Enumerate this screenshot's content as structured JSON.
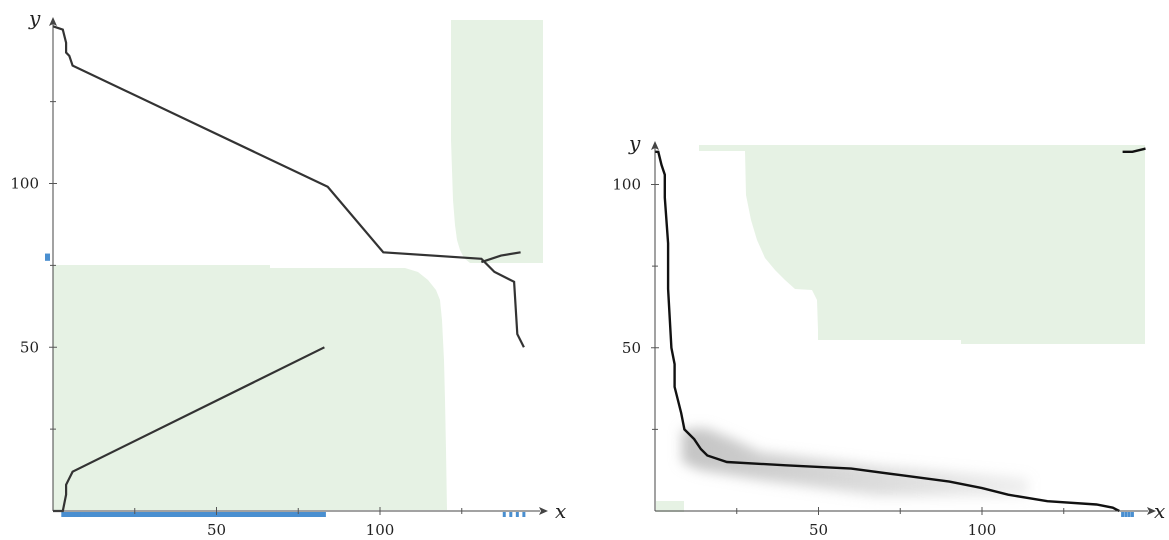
{
  "colors": {
    "region": "#e6f2e4",
    "curve": "#333333",
    "marker": "#4a8fd0",
    "shadow": "#9a9a9a"
  },
  "chart_data": [
    {
      "type": "line",
      "title": "",
      "xlabel": "x",
      "ylabel": "y",
      "xlim": [
        0,
        150
      ],
      "ylim": [
        0,
        148
      ],
      "x_tick_labels": [
        "50",
        "100"
      ],
      "y_tick_labels": [
        "50",
        "100"
      ],
      "x_ticks": [
        50,
        100
      ],
      "y_ticks": [
        50,
        100
      ],
      "x_minor_ticks": [
        25,
        75,
        125
      ],
      "y_minor_ticks": [
        25,
        75,
        125
      ],
      "series": [
        {
          "points": [
            [
              0,
              148
            ],
            [
              3,
              147
            ],
            [
              4,
              143
            ],
            [
              4,
              140
            ],
            [
              5,
              139
            ],
            [
              6,
              136
            ],
            [
              84,
              99
            ],
            [
              101,
              79
            ],
            [
              131,
              77
            ],
            [
              135,
              73
            ],
            [
              141,
              70
            ],
            [
              142,
              54
            ],
            [
              144,
              50
            ]
          ]
        },
        {
          "points": [
            [
              0,
              0
            ],
            [
              3,
              0
            ],
            [
              4,
              5
            ],
            [
              4,
              8
            ],
            [
              5,
              10
            ],
            [
              6,
              12
            ],
            [
              83,
              50
            ]
          ]
        },
        {
          "points": [
            [
              131,
              76
            ],
            [
              137,
              78
            ],
            [
              143,
              79
            ]
          ]
        }
      ],
      "regions": [
        {
          "x": [
            122,
            150
          ],
          "y": [
            75,
            150
          ]
        },
        {
          "x": [
            0,
            120
          ],
          "y": [
            0,
            74
          ]
        }
      ],
      "markers": {
        "x_axis": [
          3,
          4,
          5,
          6,
          7,
          8,
          9,
          10,
          20,
          30,
          40,
          50,
          60,
          70,
          80,
          83,
          138,
          140,
          142,
          144
        ],
        "y_axis": [
          77,
          78
        ]
      }
    },
    {
      "type": "line",
      "title": "",
      "xlabel": "x",
      "ylabel": "y",
      "xlim": [
        0,
        150
      ],
      "ylim": [
        0,
        112
      ],
      "x_tick_labels": [
        "50",
        "100"
      ],
      "y_tick_labels": [
        "50",
        "100"
      ],
      "x_ticks": [
        50,
        100
      ],
      "y_ticks": [
        50,
        100
      ],
      "x_minor_ticks": [
        25,
        75,
        125
      ],
      "y_minor_ticks": [
        25,
        75
      ],
      "series": [
        {
          "points": [
            [
              0,
              110
            ],
            [
              1,
              110
            ],
            [
              2,
              106
            ],
            [
              3,
              103
            ],
            [
              3,
              96
            ],
            [
              4,
              82
            ],
            [
              4,
              68
            ],
            [
              5,
              50
            ],
            [
              6,
              45
            ],
            [
              6,
              38
            ],
            [
              7,
              34
            ],
            [
              8,
              30
            ],
            [
              9,
              25
            ],
            [
              12,
              22
            ],
            [
              14,
              19
            ],
            [
              16,
              17
            ],
            [
              22,
              15
            ],
            [
              40,
              14
            ],
            [
              60,
              13
            ],
            [
              75,
              11
            ],
            [
              90,
              9
            ],
            [
              100,
              7
            ],
            [
              108,
              5
            ],
            [
              120,
              3
            ],
            [
              135,
              2
            ],
            [
              140,
              1
            ],
            [
              142,
              0
            ]
          ]
        },
        {
          "points": [
            [
              143,
              110
            ],
            [
              146,
              110
            ],
            [
              150,
              111
            ]
          ]
        }
      ],
      "regions": [
        {
          "x": [
            13,
            150
          ],
          "y": [
            52,
            111
          ]
        },
        {
          "x": [
            0,
            13
          ],
          "y": [
            0,
            2
          ]
        }
      ],
      "markers": {
        "x_axis": [
          143,
          144,
          145,
          146
        ],
        "y_axis": []
      }
    }
  ]
}
